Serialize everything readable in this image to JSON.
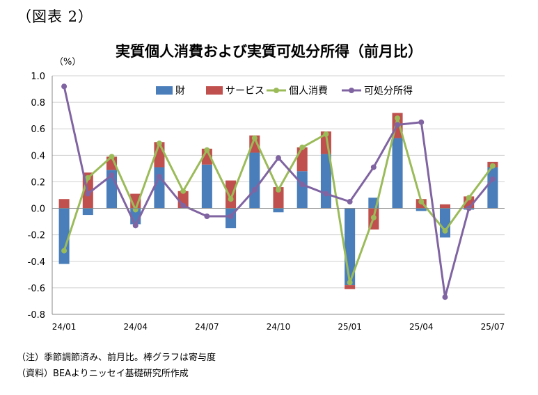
{
  "figure_label": "（図表 2）",
  "notes": {
    "note": "（注）季節調節済み、前月比。棒グラフは寄与度",
    "source": "（資料）BEAよりニッセイ基礎研究所作成"
  },
  "chart_data": {
    "type": "bar+line",
    "title": "実質個人消費および実質可処分所得（前月比）",
    "y_unit_label": "（%）",
    "ylim": [
      -0.8,
      1.0
    ],
    "y_ticks": [
      "1.0",
      "0.8",
      "0.6",
      "0.4",
      "0.2",
      "0.0",
      "-0.2",
      "-0.4",
      "-0.6",
      "-0.8"
    ],
    "y_tick_values": [
      1.0,
      0.8,
      0.6,
      0.4,
      0.2,
      0.0,
      -0.2,
      -0.4,
      -0.6,
      -0.8
    ],
    "grid": "horizontal",
    "legend_position": "top",
    "categories": [
      "24/01",
      "24/02",
      "24/03",
      "24/04",
      "24/05",
      "24/06",
      "24/07",
      "24/08",
      "24/09",
      "24/10",
      "24/11",
      "24/12",
      "25/01",
      "25/02",
      "25/03",
      "25/04",
      "25/05",
      "25/06",
      "25/07"
    ],
    "x_tick_labels": [
      "24/01",
      "24/04",
      "24/07",
      "24/10",
      "25/01",
      "25/04",
      "25/07"
    ],
    "x_tick_indices": [
      0,
      3,
      6,
      9,
      12,
      15,
      18
    ],
    "bar_series": [
      {
        "name": "財",
        "color": "#4a7ebb",
        "values": [
          -0.42,
          -0.05,
          0.29,
          -0.12,
          0.31,
          0.0,
          0.33,
          -0.15,
          0.42,
          -0.03,
          0.28,
          0.41,
          -0.58,
          0.08,
          0.53,
          -0.02,
          -0.22,
          -0.01,
          0.31
        ]
      },
      {
        "name": "サービス",
        "color": "#c0504d",
        "values": [
          0.07,
          0.27,
          0.1,
          0.11,
          0.19,
          0.13,
          0.12,
          0.21,
          0.13,
          0.16,
          0.18,
          0.17,
          -0.03,
          -0.16,
          0.19,
          0.07,
          0.03,
          0.09,
          0.04
        ]
      }
    ],
    "line_series": [
      {
        "name": "個人消費",
        "color": "#9bbb59",
        "values": [
          -0.32,
          0.23,
          0.39,
          -0.01,
          0.49,
          0.13,
          0.44,
          0.07,
          0.53,
          0.14,
          0.46,
          0.56,
          -0.56,
          -0.07,
          0.68,
          0.05,
          -0.17,
          0.08,
          0.32
        ]
      },
      {
        "name": "可処分所得",
        "color": "#8064a2",
        "values": [
          0.92,
          0.11,
          0.25,
          -0.13,
          0.24,
          0.02,
          -0.06,
          -0.06,
          0.14,
          0.38,
          0.18,
          0.11,
          0.05,
          0.31,
          0.63,
          0.65,
          -0.67,
          0.0,
          0.22
        ]
      }
    ]
  }
}
